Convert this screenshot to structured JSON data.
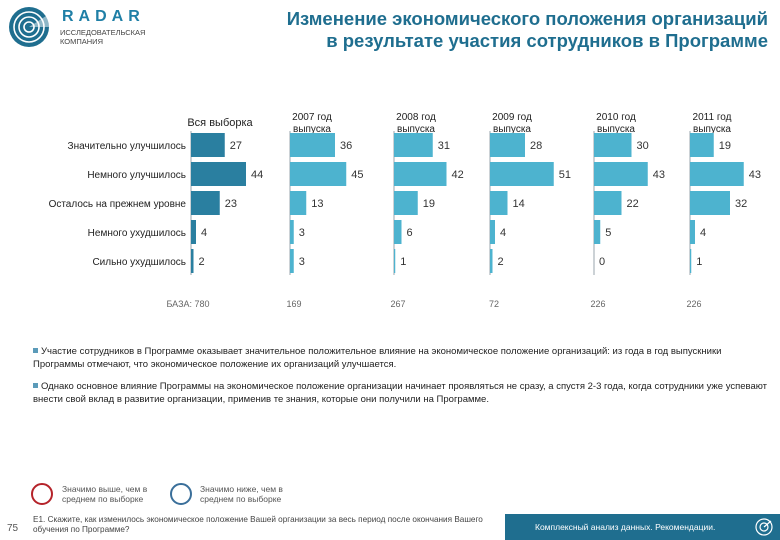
{
  "header": {
    "brand": "RADAR",
    "brand_subtitle": "ИССЛЕДОВАТЕЛЬСКАЯ КОМПАНИЯ",
    "title_line1": "Изменение экономического положения организаций",
    "title_line2": "в результате участия сотрудников в Программе"
  },
  "colors": {
    "accent": "#1f6e8f",
    "bar_total": "#2a7fa0",
    "bar_year": "#4db3cf",
    "axis": "#9aa5ad",
    "legend_above": "#b5232a",
    "legend_below": "#3a6f9a"
  },
  "chart_data": {
    "type": "bar",
    "orientation": "horizontal",
    "categories": [
      "Значительно улучшилось",
      "Немного улучшилось",
      "Осталось на прежнем уровне",
      "Немного ухудшилось",
      "Сильно ухудшилось"
    ],
    "series": [
      {
        "name": "Вся выборка",
        "values": [
          27,
          44,
          23,
          4,
          2
        ],
        "base": "БАЗА: 780"
      },
      {
        "name": "2007 год выпуска",
        "values": [
          36,
          45,
          13,
          3,
          3
        ],
        "base": "169"
      },
      {
        "name": "2008 год выпуска",
        "values": [
          31,
          42,
          19,
          6,
          1
        ],
        "base": "267"
      },
      {
        "name": "2009 год выпуска",
        "values": [
          28,
          51,
          14,
          4,
          2
        ],
        "base": "72"
      },
      {
        "name": "2010 год выпуска",
        "values": [
          30,
          43,
          22,
          5,
          0
        ],
        "base": "226"
      },
      {
        "name": "2011 год выпуска",
        "values": [
          19,
          43,
          32,
          4,
          1
        ],
        "base": "226"
      }
    ],
    "unit": "%"
  },
  "bullets": [
    "Участие сотрудников в Программе оказывает значительное положительное влияние на экономическое положение организаций: из года в год выпускники Программы отмечают, что экономическое положение их организаций улучшается.",
    "Однако основное влияние Программы на экономическое положение организации начинает проявляться не сразу, а спустя 2-3 года, когда сотрудники уже успевают внести свой вклад в развитие организации, применив те знания, которые они получили на Программе."
  ],
  "legend": {
    "above": "Значимо выше, чем в среднем по выборке",
    "below": "Значимо ниже, чем в среднем по выборке"
  },
  "footer": {
    "page_number": "75",
    "question": "Е1. Скажите, как изменилось экономическое положение Вашей организации за весь период после окончания Вашего обучения по Программе?",
    "caption": "Комплексный анализ данных. Рекомендации."
  }
}
